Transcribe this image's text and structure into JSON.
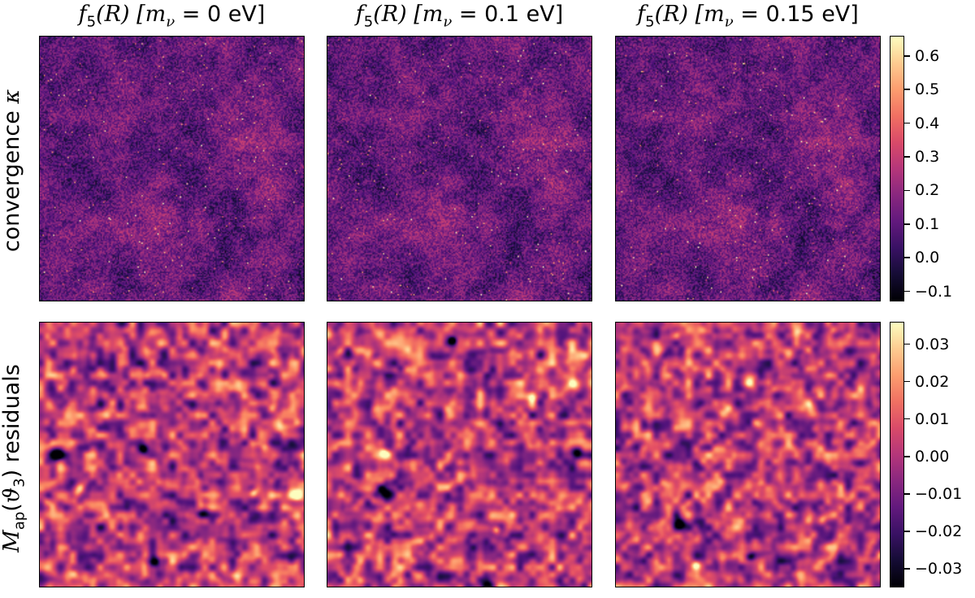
{
  "chart_data": [
    {
      "type": "heatmap",
      "row_label": "convergence κ",
      "columns": [
        {
          "title": "f5(R) [mν = 0 eV]",
          "model": "f5(R)",
          "m_nu": "0 eV"
        },
        {
          "title": "f5(R) [mν = 0.1 eV]",
          "model": "f5(R)",
          "m_nu": "0.1 eV"
        },
        {
          "title": "f5(R) [mν = 0.15 eV]",
          "model": "f5(R)",
          "m_nu": "0.15 eV"
        }
      ],
      "colormap": "magma",
      "color_range": [
        -0.13,
        0.66
      ],
      "colorbar_ticks": [
        "0.6",
        "0.5",
        "0.4",
        "0.3",
        "0.2",
        "0.1",
        "0.0",
        "−0.1"
      ],
      "colorbar_tick_values": [
        0.6,
        0.5,
        0.4,
        0.3,
        0.2,
        0.1,
        0.0,
        -0.1
      ]
    },
    {
      "type": "heatmap",
      "row_label": "Map(θ3) residuals",
      "columns": [
        {
          "title": "f5(R) [mν = 0 eV]"
        },
        {
          "title": "f5(R) [mν = 0.1 eV]"
        },
        {
          "title": "f5(R) [mν = 0.15 eV]"
        }
      ],
      "colormap": "magma",
      "color_range": [
        -0.035,
        0.036
      ],
      "colorbar_ticks": [
        "0.03",
        "0.02",
        "0.01",
        "0.00",
        "−0.01",
        "−0.02",
        "−0.03"
      ],
      "colorbar_tick_values": [
        0.03,
        0.02,
        0.01,
        0.0,
        -0.01,
        -0.02,
        -0.03
      ]
    }
  ],
  "titles": {
    "col1": {
      "pre": "f",
      "sub": "5",
      "mid": "(R) [m",
      "nu": "ν",
      "val": " = 0 eV]"
    },
    "col2": {
      "pre": "f",
      "sub": "5",
      "mid": "(R) [m",
      "nu": "ν",
      "val": " = 0.1 eV]"
    },
    "col3": {
      "pre": "f",
      "sub": "5",
      "mid": "(R) [m",
      "nu": "ν",
      "val": " = 0.15 eV]"
    }
  },
  "row_labels": {
    "top": {
      "text": "convergence ",
      "symbol": "κ"
    },
    "bottom": {
      "M": "M",
      "ap": "ap",
      "open": "(",
      "theta": "ϑ",
      "three": "3",
      "rest": ") residuals"
    }
  },
  "colors": {
    "colormap": "magma"
  }
}
